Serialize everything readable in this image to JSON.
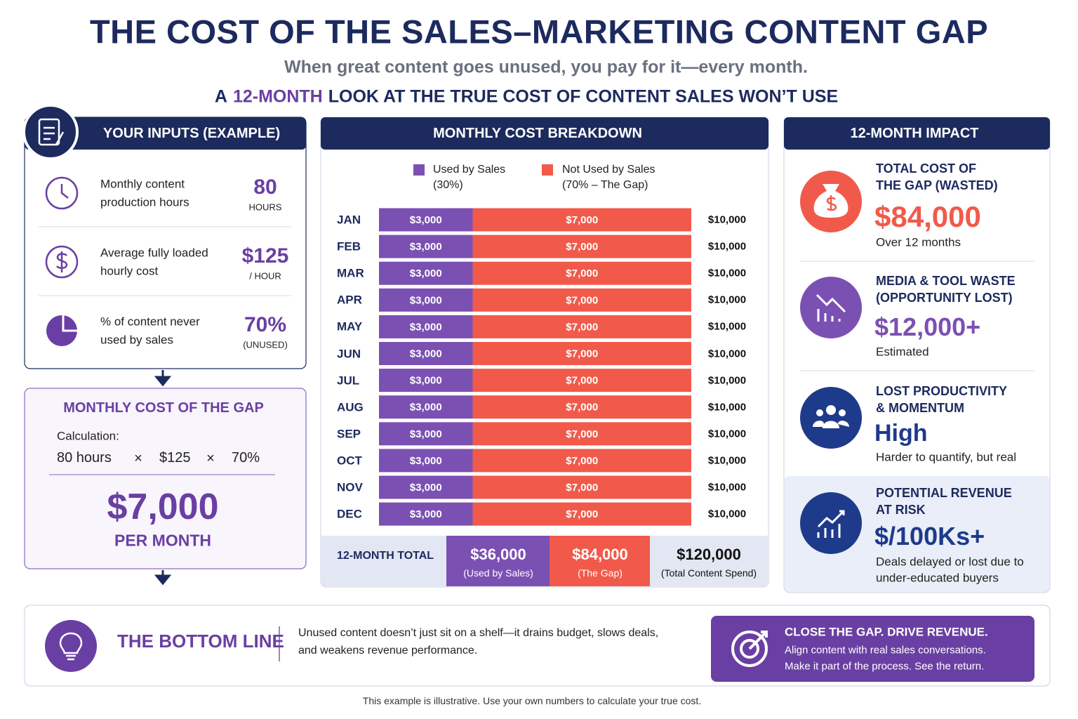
{
  "header": {
    "title": "THE COST OF THE SALES–MARKETING CONTENT GAP",
    "subtitle": "When great content goes unused, you pay for it—every month.",
    "tagline_before": "A",
    "tagline_highlight": "12-MONTH",
    "tagline_after": "LOOK AT THE TRUE COST OF CONTENT SALES WON’T USE"
  },
  "inputs": {
    "title": "YOUR INPUTS (EXAMPLE)",
    "items": [
      {
        "lines": [
          "Monthly content",
          "production hours"
        ],
        "value": "80",
        "unit": "HOURS"
      },
      {
        "lines": [
          "Average fully loaded",
          "hourly cost"
        ],
        "value": "$125",
        "unit": "/ HOUR"
      },
      {
        "lines": [
          "% of content never",
          "used by sales"
        ],
        "value": "70%",
        "unit": "(UNUSED)"
      }
    ]
  },
  "monthly_gap": {
    "title": "MONTHLY COST OF THE GAP",
    "calc_label": "Calculation:",
    "factors": [
      "80 hours",
      "$125",
      "70%"
    ],
    "operators": [
      "×",
      "×"
    ],
    "result": "$7,000",
    "result_unit": "PER MONTH"
  },
  "chart_data": {
    "type": "bar",
    "stacked": true,
    "title": "MONTHLY COST BREAKDOWN",
    "categories": [
      "JAN",
      "FEB",
      "MAR",
      "APR",
      "MAY",
      "JUN",
      "JUL",
      "AUG",
      "SEP",
      "OCT",
      "NOV",
      "DEC"
    ],
    "xlim": [
      0,
      10000
    ],
    "series": [
      {
        "name": "Used by Sales",
        "legend_note": "(30%)",
        "color": "#7b50b3",
        "values": [
          3000,
          3000,
          3000,
          3000,
          3000,
          3000,
          3000,
          3000,
          3000,
          3000,
          3000,
          3000
        ],
        "value_labels": [
          "$3,000",
          "$3,000",
          "$3,000",
          "$3,000",
          "$3,000",
          "$3,000",
          "$3,000",
          "$3,000",
          "$3,000",
          "$3,000",
          "$3,000",
          "$3,000"
        ]
      },
      {
        "name": "Not Used by Sales",
        "legend_note": "(70% – The Gap)",
        "color": "#f15a4a",
        "values": [
          7000,
          7000,
          7000,
          7000,
          7000,
          7000,
          7000,
          7000,
          7000,
          7000,
          7000,
          7000
        ],
        "value_labels": [
          "$7,000",
          "$7,000",
          "$7,000",
          "$7,000",
          "$7,000",
          "$7,000",
          "$7,000",
          "$7,000",
          "$7,000",
          "$7,000",
          "$7,000",
          "$7,000"
        ]
      }
    ],
    "row_totals": [
      "$10,000",
      "$10,000",
      "$10,000",
      "$10,000",
      "$10,000",
      "$10,000",
      "$10,000",
      "$10,000",
      "$10,000",
      "$10,000",
      "$10,000",
      "$10,000"
    ],
    "total_row": {
      "label": "12-MONTH TOTAL",
      "cells": [
        {
          "value": "$36,000",
          "note": "(Used by Sales)"
        },
        {
          "value": "$84,000",
          "note": "(The Gap)"
        },
        {
          "value": "$120,000",
          "note": "(Total Content Spend)"
        }
      ]
    }
  },
  "impact": {
    "title": "12-MONTH IMPACT",
    "items": [
      {
        "lines": [
          "TOTAL COST OF",
          "THE GAP (WASTED)"
        ],
        "value": "$84,000",
        "notes": [
          "Over 12 months"
        ]
      },
      {
        "lines": [
          "MEDIA & TOOL WASTE",
          "(OPPORTUNITY LOST)"
        ],
        "value": "$12,000+",
        "notes": [
          "Estimated"
        ]
      },
      {
        "lines": [
          "LOST PRODUCTIVITY",
          "& MOMENTUM"
        ],
        "value": "High",
        "notes": [
          "Harder to quantify, but real"
        ]
      },
      {
        "lines": [
          "POTENTIAL REVENUE",
          "AT RISK"
        ],
        "value": "$/100Ks+",
        "notes": [
          "Deals delayed or lost due to",
          "under-educated buyers"
        ]
      }
    ]
  },
  "bottom": {
    "title": "THE BOTTOM LINE",
    "text_lines": [
      "Unused content doesn’t just sit on a shelf—it drains budget, slows deals,",
      "and weakens revenue performance."
    ],
    "cta_title": "CLOSE THE GAP. DRIVE REVENUE.",
    "cta_lines": [
      "Align content with real sales conversations.",
      "Make it part of the process. See the return."
    ]
  },
  "footer": {
    "note": "This example is illustrative. Use your own numbers to calculate your true cost."
  }
}
